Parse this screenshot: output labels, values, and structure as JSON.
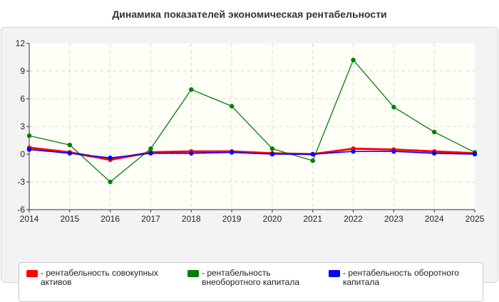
{
  "title": "Динамика показателей экономическая рентабельности",
  "chart_data": {
    "type": "line",
    "x": [
      2014,
      2015,
      2016,
      2017,
      2018,
      2019,
      2020,
      2021,
      2022,
      2023,
      2024,
      2025
    ],
    "ylim": [
      -6,
      12
    ],
    "yticks": [
      -6,
      -3,
      0,
      3,
      6,
      9,
      12
    ],
    "grid": true,
    "legend_position": "bottom",
    "series": [
      {
        "name": "- рентабельность совокупных активов",
        "color": "#ff0000",
        "values": [
          0.7,
          0.2,
          -0.6,
          0.2,
          0.3,
          0.3,
          0.1,
          0.0,
          0.6,
          0.5,
          0.3,
          0.1
        ]
      },
      {
        "name": "- рентабельность внеоборотного капитала",
        "color": "#008000",
        "values": [
          2.0,
          1.0,
          -3.0,
          0.6,
          7.0,
          5.2,
          0.6,
          -0.7,
          10.2,
          5.1,
          2.4,
          0.2
        ]
      },
      {
        "name": "- рентабельность оборотного капитала",
        "color": "#0000ff",
        "values": [
          0.5,
          0.1,
          -0.4,
          0.1,
          0.1,
          0.2,
          0.0,
          0.0,
          0.3,
          0.3,
          0.1,
          0.0
        ]
      }
    ]
  }
}
